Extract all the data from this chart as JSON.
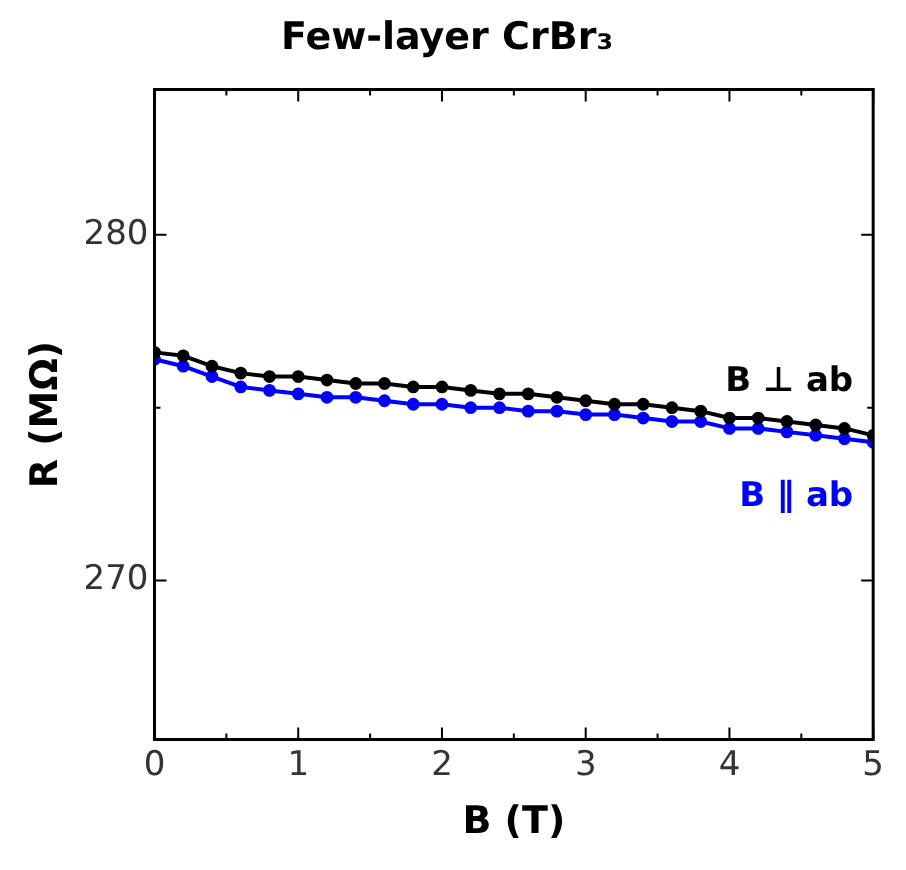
{
  "chart_data": {
    "type": "line",
    "title": "Few-layer CrBr₃",
    "xlabel": "B (T)",
    "ylabel": "R (MΩ)",
    "x": [
      0,
      0.2,
      0.4,
      0.6,
      0.8,
      1,
      1.2,
      1.4,
      1.6,
      1.8,
      2,
      2.2,
      2.4,
      2.6,
      2.8,
      3,
      3.2,
      3.4,
      3.6,
      3.8,
      4,
      4.2,
      4.4,
      4.6,
      4.8,
      5
    ],
    "series": [
      {
        "name": "B ⊥ ab",
        "color": "#000000",
        "values": [
          276.6,
          276.5,
          276.2,
          276.0,
          275.9,
          275.9,
          275.8,
          275.7,
          275.7,
          275.6,
          275.6,
          275.5,
          275.4,
          275.4,
          275.3,
          275.2,
          275.1,
          275.1,
          275.0,
          274.9,
          274.7,
          274.7,
          274.6,
          274.5,
          274.4,
          274.2
        ]
      },
      {
        "name": "B ∥ ab",
        "color": "#0000ff",
        "values": [
          276.4,
          276.2,
          275.9,
          275.6,
          275.5,
          275.4,
          275.3,
          275.3,
          275.2,
          275.1,
          275.1,
          275.0,
          275.0,
          274.9,
          274.9,
          274.8,
          274.8,
          274.7,
          274.6,
          274.6,
          274.4,
          274.4,
          274.3,
          274.2,
          274.1,
          274.0
        ]
      }
    ],
    "xlim": [
      0,
      5
    ],
    "xticks": [
      0,
      {
        "value": 0.5,
        "label": null
      },
      1,
      {
        "value": 1.5,
        "label": null
      },
      2,
      {
        "value": 2.5,
        "label": null
      },
      3,
      {
        "value": 3.5,
        "label": null
      },
      4,
      {
        "value": 4.5,
        "label": null
      },
      5
    ],
    "ylim": [
      265.4,
      284.2
    ],
    "yticks": [
      270,
      {
        "value": 275,
        "label": null
      },
      280
    ],
    "grid": false,
    "legend": false,
    "marker": "circle",
    "line_style": "solid"
  }
}
